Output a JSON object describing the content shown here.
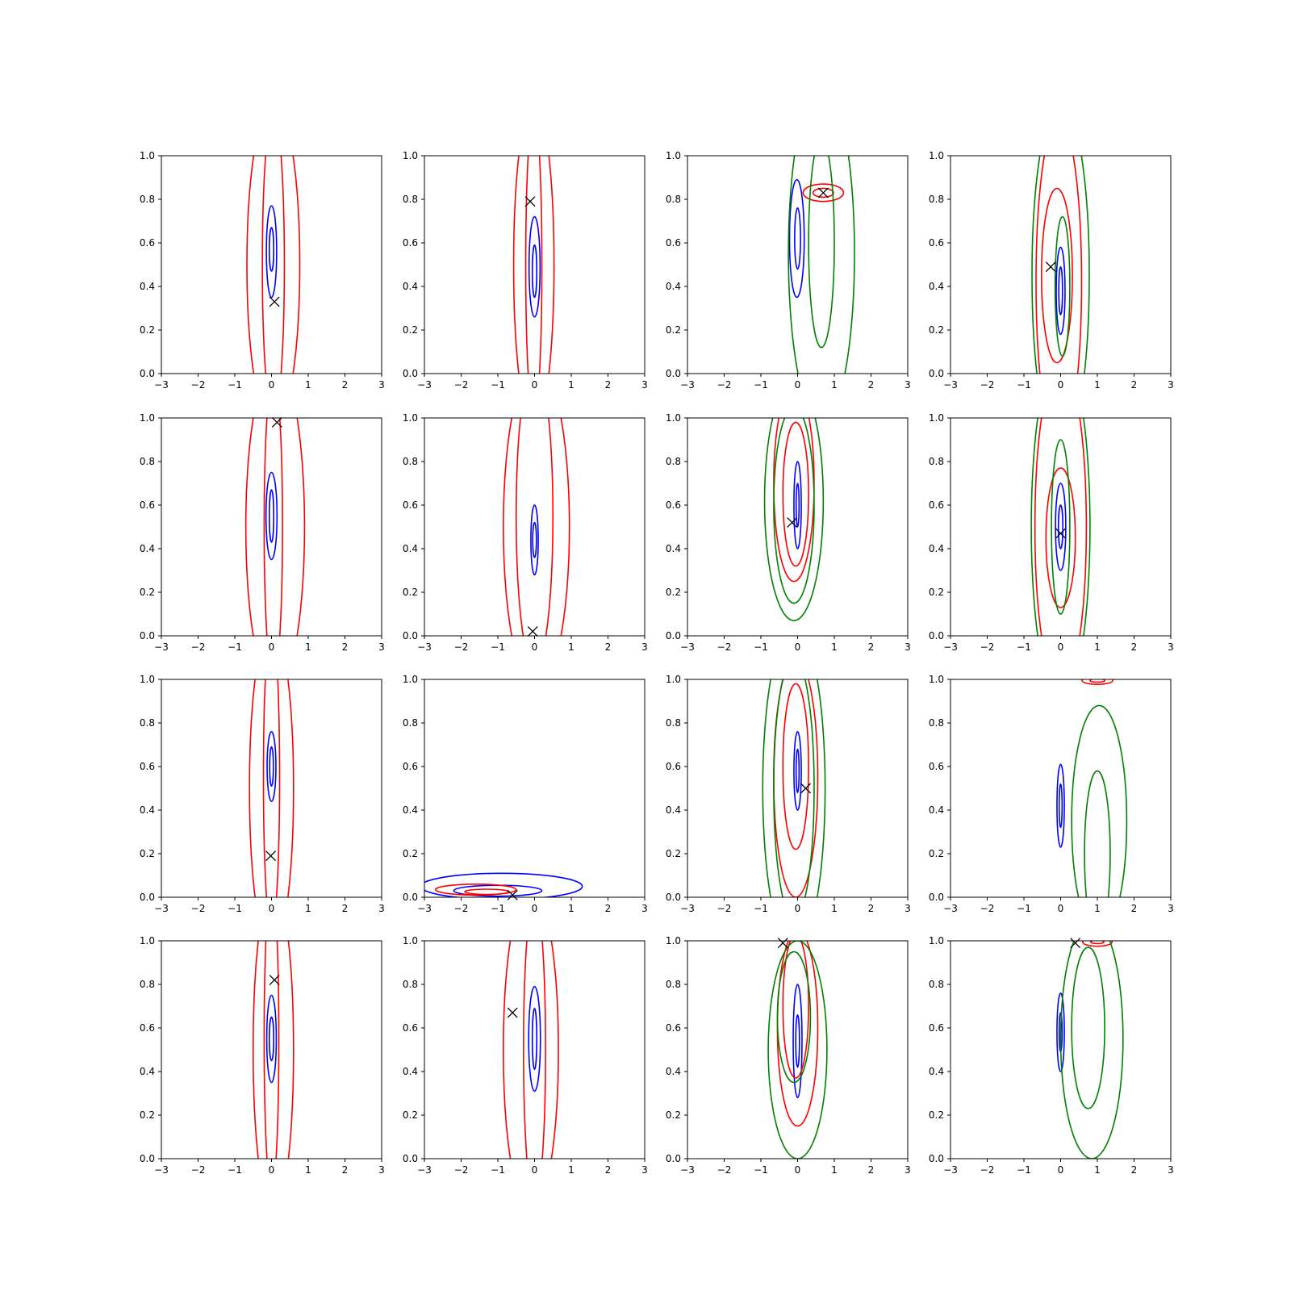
{
  "figure": {
    "grid_rows": 4,
    "grid_cols": 4,
    "background": "#ffffff",
    "colors": {
      "blue": "#0000ff",
      "red": "#ff0000",
      "green": "#008000",
      "marker": "#000000"
    }
  },
  "chart_data": [
    {
      "type": "contour",
      "xlim": [
        -3,
        3
      ],
      "ylim": [
        0,
        1
      ],
      "xticks": [
        "−3",
        "−2",
        "−1",
        "0",
        "1",
        "2",
        "3"
      ],
      "yticks": [
        "0.0",
        "0.2",
        "0.4",
        "0.6",
        "0.8",
        "1.0"
      ],
      "grid": false,
      "contours": [
        {
          "color": "blue",
          "cx": 0,
          "cy": 0.56,
          "rx": 0.14,
          "ry": 0.21
        },
        {
          "color": "blue",
          "cx": 0,
          "cy": 0.57,
          "rx": 0.06,
          "ry": 0.1
        },
        {
          "color": "red",
          "cx": 0.05,
          "cy": 0.5,
          "rx": 0.3,
          "ry": 0.7
        },
        {
          "color": "red",
          "cx": 0.05,
          "cy": 0.5,
          "rx": 0.72,
          "ry": 0.75
        }
      ],
      "marker": {
        "x": 0.08,
        "y": 0.33
      }
    },
    {
      "type": "contour",
      "xlim": [
        -3,
        3
      ],
      "ylim": [
        0,
        1
      ],
      "xticks": [
        "−3",
        "−2",
        "−1",
        "0",
        "1",
        "2",
        "3"
      ],
      "yticks": [
        "0.0",
        "0.2",
        "0.4",
        "0.6",
        "0.8",
        "1.0"
      ],
      "grid": false,
      "contours": [
        {
          "color": "blue",
          "cx": 0,
          "cy": 0.49,
          "rx": 0.15,
          "ry": 0.23
        },
        {
          "color": "blue",
          "cx": 0,
          "cy": 0.47,
          "rx": 0.06,
          "ry": 0.12
        },
        {
          "color": "red",
          "cx": -0.02,
          "cy": 0.5,
          "rx": 0.22,
          "ry": 0.7
        },
        {
          "color": "red",
          "cx": -0.02,
          "cy": 0.5,
          "rx": 0.55,
          "ry": 0.75
        }
      ],
      "marker": {
        "x": -0.12,
        "y": 0.79
      }
    },
    {
      "type": "contour",
      "xlim": [
        -3,
        3
      ],
      "ylim": [
        0,
        1
      ],
      "xticks": [
        "−3",
        "−2",
        "−1",
        "0",
        "1",
        "2",
        "3"
      ],
      "yticks": [
        "0.0",
        "0.2",
        "0.4",
        "0.6",
        "0.8",
        "1.0"
      ],
      "grid": false,
      "contours": [
        {
          "color": "blue",
          "cx": -0.02,
          "cy": 0.62,
          "rx": 0.2,
          "ry": 0.27
        },
        {
          "color": "blue",
          "cx": 0,
          "cy": 0.62,
          "rx": 0.08,
          "ry": 0.14
        },
        {
          "color": "red",
          "cx": 0.7,
          "cy": 0.83,
          "rx": 0.55,
          "ry": 0.04
        },
        {
          "color": "red",
          "cx": 0.7,
          "cy": 0.83,
          "rx": 0.28,
          "ry": 0.02
        },
        {
          "color": "green",
          "cx": 0.65,
          "cy": 0.6,
          "rx": 0.35,
          "ry": 0.48
        },
        {
          "color": "green",
          "cx": 0.65,
          "cy": 0.55,
          "rx": 0.9,
          "ry": 0.78
        }
      ],
      "marker": {
        "x": 0.7,
        "y": 0.83
      }
    },
    {
      "type": "contour",
      "xlim": [
        -3,
        3
      ],
      "ylim": [
        0,
        1
      ],
      "xticks": [
        "−3",
        "−2",
        "−1",
        "0",
        "1",
        "2",
        "3"
      ],
      "yticks": [
        "0.0",
        "0.2",
        "0.4",
        "0.6",
        "0.8",
        "1.0"
      ],
      "grid": false,
      "contours": [
        {
          "color": "blue",
          "cx": 0,
          "cy": 0.38,
          "rx": 0.12,
          "ry": 0.2
        },
        {
          "color": "blue",
          "cx": 0,
          "cy": 0.38,
          "rx": 0.05,
          "ry": 0.11
        },
        {
          "color": "red",
          "cx": -0.1,
          "cy": 0.45,
          "rx": 0.42,
          "ry": 0.4
        },
        {
          "color": "red",
          "cx": -0.05,
          "cy": 0.42,
          "rx": 0.62,
          "ry": 0.75
        },
        {
          "color": "green",
          "cx": 0.05,
          "cy": 0.4,
          "rx": 0.2,
          "ry": 0.32
        },
        {
          "color": "green",
          "cx": 0,
          "cy": 0.45,
          "rx": 0.78,
          "ry": 0.8
        }
      ],
      "marker": {
        "x": -0.27,
        "y": 0.49
      }
    },
    {
      "type": "contour",
      "xlim": [
        -3,
        3
      ],
      "ylim": [
        0,
        1
      ],
      "xticks": [
        "−3",
        "−2",
        "−1",
        "0",
        "1",
        "2",
        "3"
      ],
      "yticks": [
        "0.0",
        "0.2",
        "0.4",
        "0.6",
        "0.8",
        "1.0"
      ],
      "grid": false,
      "contours": [
        {
          "color": "blue",
          "cx": 0,
          "cy": 0.55,
          "rx": 0.15,
          "ry": 0.2
        },
        {
          "color": "blue",
          "cx": 0,
          "cy": 0.55,
          "rx": 0.06,
          "ry": 0.12
        },
        {
          "color": "red",
          "cx": 0.05,
          "cy": 0.5,
          "rx": 0.25,
          "ry": 0.7
        },
        {
          "color": "red",
          "cx": 0.1,
          "cy": 0.5,
          "rx": 0.8,
          "ry": 0.75
        }
      ],
      "marker": {
        "x": 0.15,
        "y": 0.98
      }
    },
    {
      "type": "contour",
      "xlim": [
        -3,
        3
      ],
      "ylim": [
        0,
        1
      ],
      "xticks": [
        "−3",
        "−2",
        "−1",
        "0",
        "1",
        "2",
        "3"
      ],
      "yticks": [
        "0.0",
        "0.2",
        "0.4",
        "0.6",
        "0.8",
        "1.0"
      ],
      "grid": false,
      "contours": [
        {
          "color": "blue",
          "cx": 0,
          "cy": 0.44,
          "rx": 0.1,
          "ry": 0.16
        },
        {
          "color": "blue",
          "cx": 0,
          "cy": 0.44,
          "rx": 0.05,
          "ry": 0.08
        },
        {
          "color": "red",
          "cx": 0,
          "cy": 0.55,
          "rx": 0.5,
          "ry": 0.7
        },
        {
          "color": "red",
          "cx": 0.05,
          "cy": 0.5,
          "rx": 0.9,
          "ry": 0.75
        }
      ],
      "marker": {
        "x": -0.05,
        "y": 0.02
      }
    },
    {
      "type": "contour",
      "xlim": [
        -3,
        3
      ],
      "ylim": [
        0,
        1
      ],
      "xticks": [
        "−3",
        "−2",
        "−1",
        "0",
        "1",
        "2",
        "3"
      ],
      "yticks": [
        "0.0",
        "0.2",
        "0.4",
        "0.6",
        "0.8",
        "1.0"
      ],
      "grid": false,
      "contours": [
        {
          "color": "blue",
          "cx": 0,
          "cy": 0.6,
          "rx": 0.1,
          "ry": 0.2
        },
        {
          "color": "blue",
          "cx": 0,
          "cy": 0.6,
          "rx": 0.04,
          "ry": 0.1
        },
        {
          "color": "red",
          "cx": -0.05,
          "cy": 0.65,
          "rx": 0.35,
          "ry": 0.33
        },
        {
          "color": "red",
          "cx": -0.1,
          "cy": 0.7,
          "rx": 0.55,
          "ry": 0.45
        },
        {
          "color": "green",
          "cx": -0.1,
          "cy": 0.6,
          "rx": 0.55,
          "ry": 0.45
        },
        {
          "color": "green",
          "cx": -0.1,
          "cy": 0.62,
          "rx": 0.8,
          "ry": 0.55
        }
      ],
      "marker": {
        "x": -0.15,
        "y": 0.52
      }
    },
    {
      "type": "contour",
      "xlim": [
        -3,
        3
      ],
      "ylim": [
        0,
        1
      ],
      "xticks": [
        "−3",
        "−2",
        "−1",
        "0",
        "1",
        "2",
        "3"
      ],
      "yticks": [
        "0.0",
        "0.2",
        "0.4",
        "0.6",
        "0.8",
        "1.0"
      ],
      "grid": false,
      "contours": [
        {
          "color": "blue",
          "cx": 0,
          "cy": 0.5,
          "rx": 0.14,
          "ry": 0.2
        },
        {
          "color": "blue",
          "cx": 0,
          "cy": 0.5,
          "rx": 0.06,
          "ry": 0.1
        },
        {
          "color": "red",
          "cx": 0,
          "cy": 0.45,
          "rx": 0.4,
          "ry": 0.32
        },
        {
          "color": "red",
          "cx": 0,
          "cy": 0.5,
          "rx": 0.7,
          "ry": 0.75
        },
        {
          "color": "green",
          "cx": 0,
          "cy": 0.5,
          "rx": 0.25,
          "ry": 0.4
        },
        {
          "color": "green",
          "cx": 0,
          "cy": 0.5,
          "rx": 0.8,
          "ry": 0.8
        }
      ],
      "marker": {
        "x": 0,
        "y": 0.47
      }
    },
    {
      "type": "contour",
      "xlim": [
        -3,
        3
      ],
      "ylim": [
        0,
        1
      ],
      "xticks": [
        "−3",
        "−2",
        "−1",
        "0",
        "1",
        "2",
        "3"
      ],
      "yticks": [
        "0.0",
        "0.2",
        "0.4",
        "0.6",
        "0.8",
        "1.0"
      ],
      "grid": false,
      "contours": [
        {
          "color": "blue",
          "cx": 0,
          "cy": 0.6,
          "rx": 0.12,
          "ry": 0.16
        },
        {
          "color": "blue",
          "cx": 0,
          "cy": 0.6,
          "rx": 0.05,
          "ry": 0.09
        },
        {
          "color": "red",
          "cx": 0,
          "cy": 0.55,
          "rx": 0.22,
          "ry": 0.7
        },
        {
          "color": "red",
          "cx": 0,
          "cy": 0.5,
          "rx": 0.6,
          "ry": 0.75
        }
      ],
      "marker": {
        "x": -0.02,
        "y": 0.19
      }
    },
    {
      "type": "contour",
      "xlim": [
        -3,
        3
      ],
      "ylim": [
        0,
        1
      ],
      "xticks": [
        "−3",
        "−2",
        "−1",
        "0",
        "1",
        "2",
        "3"
      ],
      "yticks": [
        "0.0",
        "0.2",
        "0.4",
        "0.6",
        "0.8",
        "1.0"
      ],
      "grid": false,
      "contours": [
        {
          "color": "blue",
          "cx": -0.9,
          "cy": 0.05,
          "rx": 2.2,
          "ry": 0.06
        },
        {
          "color": "blue",
          "cx": -1,
          "cy": 0.03,
          "rx": 1.2,
          "ry": 0.025
        },
        {
          "color": "red",
          "cx": -1.6,
          "cy": 0.035,
          "rx": 1.1,
          "ry": 0.025
        },
        {
          "color": "red",
          "cx": -1.3,
          "cy": 0.025,
          "rx": 0.6,
          "ry": 0.012
        }
      ],
      "marker": {
        "x": -0.6,
        "y": 0.01
      }
    },
    {
      "type": "contour",
      "xlim": [
        -3,
        3
      ],
      "ylim": [
        0,
        1
      ],
      "xticks": [
        "−3",
        "−2",
        "−1",
        "0",
        "1",
        "2",
        "3"
      ],
      "yticks": [
        "0.0",
        "0.2",
        "0.4",
        "0.6",
        "0.8",
        "1.0"
      ],
      "grid": false,
      "contours": [
        {
          "color": "blue",
          "cx": 0,
          "cy": 0.58,
          "rx": 0.1,
          "ry": 0.18
        },
        {
          "color": "blue",
          "cx": 0,
          "cy": 0.58,
          "rx": 0.04,
          "ry": 0.1
        },
        {
          "color": "red",
          "cx": -0.05,
          "cy": 0.6,
          "rx": 0.35,
          "ry": 0.38
        },
        {
          "color": "red",
          "cx": -0.05,
          "cy": 0.55,
          "rx": 0.6,
          "ry": 0.55
        },
        {
          "color": "green",
          "cx": -0.1,
          "cy": 0.5,
          "rx": 0.55,
          "ry": 0.6
        },
        {
          "color": "green",
          "cx": -0.1,
          "cy": 0.5,
          "rx": 0.85,
          "ry": 0.75
        }
      ],
      "marker": {
        "x": 0.22,
        "y": 0.5
      }
    },
    {
      "type": "contour",
      "xlim": [
        -3,
        3
      ],
      "ylim": [
        0,
        1
      ],
      "xticks": [
        "−3",
        "−2",
        "−1",
        "0",
        "1",
        "2",
        "3"
      ],
      "yticks": [
        "0.0",
        "0.2",
        "0.4",
        "0.6",
        "0.8",
        "1.0"
      ],
      "grid": false,
      "contours": [
        {
          "color": "blue",
          "cx": 0,
          "cy": 0.42,
          "rx": 0.1,
          "ry": 0.19
        },
        {
          "color": "blue",
          "cx": 0,
          "cy": 0.42,
          "rx": 0.04,
          "ry": 0.1
        },
        {
          "color": "red",
          "cx": 1,
          "cy": 0.995,
          "rx": 0.42,
          "ry": 0.018
        },
        {
          "color": "red",
          "cx": 1,
          "cy": 0.995,
          "rx": 0.2,
          "ry": 0.008
        },
        {
          "color": "green",
          "cx": 1,
          "cy": 0.2,
          "rx": 0.35,
          "ry": 0.38
        },
        {
          "color": "green",
          "cx": 1.05,
          "cy": 0.35,
          "rx": 0.75,
          "ry": 0.53
        }
      ],
      "marker": null
    },
    {
      "type": "contour",
      "xlim": [
        -3,
        3
      ],
      "ylim": [
        0,
        1
      ],
      "xticks": [
        "−3",
        "−2",
        "−1",
        "0",
        "1",
        "2",
        "3"
      ],
      "yticks": [
        "0.0",
        "0.2",
        "0.4",
        "0.6",
        "0.8",
        "1.0"
      ],
      "grid": false,
      "contours": [
        {
          "color": "blue",
          "cx": 0,
          "cy": 0.55,
          "rx": 0.13,
          "ry": 0.2
        },
        {
          "color": "blue",
          "cx": 0,
          "cy": 0.55,
          "rx": 0.06,
          "ry": 0.1
        },
        {
          "color": "red",
          "cx": 0,
          "cy": 0.55,
          "rx": 0.2,
          "ry": 0.7
        },
        {
          "color": "red",
          "cx": 0.05,
          "cy": 0.5,
          "rx": 0.55,
          "ry": 0.75
        }
      ],
      "marker": {
        "x": 0.08,
        "y": 0.82
      }
    },
    {
      "type": "contour",
      "xlim": [
        -3,
        3
      ],
      "ylim": [
        0,
        1
      ],
      "xticks": [
        "−3",
        "−2",
        "−1",
        "0",
        "1",
        "2",
        "3"
      ],
      "yticks": [
        "0.0",
        "0.2",
        "0.4",
        "0.6",
        "0.8",
        "1.0"
      ],
      "grid": false,
      "contours": [
        {
          "color": "blue",
          "cx": 0,
          "cy": 0.55,
          "rx": 0.16,
          "ry": 0.24
        },
        {
          "color": "blue",
          "cx": 0,
          "cy": 0.55,
          "rx": 0.06,
          "ry": 0.14
        },
        {
          "color": "red",
          "cx": 0,
          "cy": 0.5,
          "rx": 0.3,
          "ry": 0.7
        },
        {
          "color": "red",
          "cx": -0.1,
          "cy": 0.5,
          "rx": 0.75,
          "ry": 0.75
        }
      ],
      "marker": {
        "x": -0.6,
        "y": 0.67
      }
    },
    {
      "type": "contour",
      "xlim": [
        -3,
        3
      ],
      "ylim": [
        0,
        1
      ],
      "xticks": [
        "−3",
        "−2",
        "−1",
        "0",
        "1",
        "2",
        "3"
      ],
      "yticks": [
        "0.0",
        "0.2",
        "0.4",
        "0.6",
        "0.8",
        "1.0"
      ],
      "grid": false,
      "contours": [
        {
          "color": "blue",
          "cx": 0,
          "cy": 0.54,
          "rx": 0.12,
          "ry": 0.26
        },
        {
          "color": "blue",
          "cx": 0,
          "cy": 0.54,
          "rx": 0.05,
          "ry": 0.12
        },
        {
          "color": "red",
          "cx": -0.05,
          "cy": 0.7,
          "rx": 0.35,
          "ry": 0.33
        },
        {
          "color": "red",
          "cx": 0,
          "cy": 0.6,
          "rx": 0.55,
          "ry": 0.45
        },
        {
          "color": "green",
          "cx": -0.1,
          "cy": 0.65,
          "rx": 0.45,
          "ry": 0.3
        },
        {
          "color": "green",
          "cx": 0,
          "cy": 0.5,
          "rx": 0.8,
          "ry": 0.5
        }
      ],
      "marker": {
        "x": -0.4,
        "y": 0.99
      }
    },
    {
      "type": "contour",
      "xlim": [
        -3,
        3
      ],
      "ylim": [
        0,
        1
      ],
      "xticks": [
        "−3",
        "−2",
        "−1",
        "0",
        "1",
        "2",
        "3"
      ],
      "yticks": [
        "0.0",
        "0.2",
        "0.4",
        "0.6",
        "0.8",
        "1.0"
      ],
      "grid": false,
      "contours": [
        {
          "color": "blue",
          "cx": 0,
          "cy": 0.58,
          "rx": 0.1,
          "ry": 0.18
        },
        {
          "color": "blue",
          "cx": 0,
          "cy": 0.58,
          "rx": 0.04,
          "ry": 0.09
        },
        {
          "color": "red",
          "cx": 1,
          "cy": 0.995,
          "rx": 0.4,
          "ry": 0.02
        },
        {
          "color": "red",
          "cx": 1,
          "cy": 0.995,
          "rx": 0.18,
          "ry": 0.008
        },
        {
          "color": "green",
          "cx": 0.75,
          "cy": 0.6,
          "rx": 0.45,
          "ry": 0.37
        },
        {
          "color": "green",
          "cx": 0.85,
          "cy": 0.55,
          "rx": 0.85,
          "ry": 0.55
        }
      ],
      "marker": {
        "x": 0.4,
        "y": 0.99
      }
    }
  ]
}
